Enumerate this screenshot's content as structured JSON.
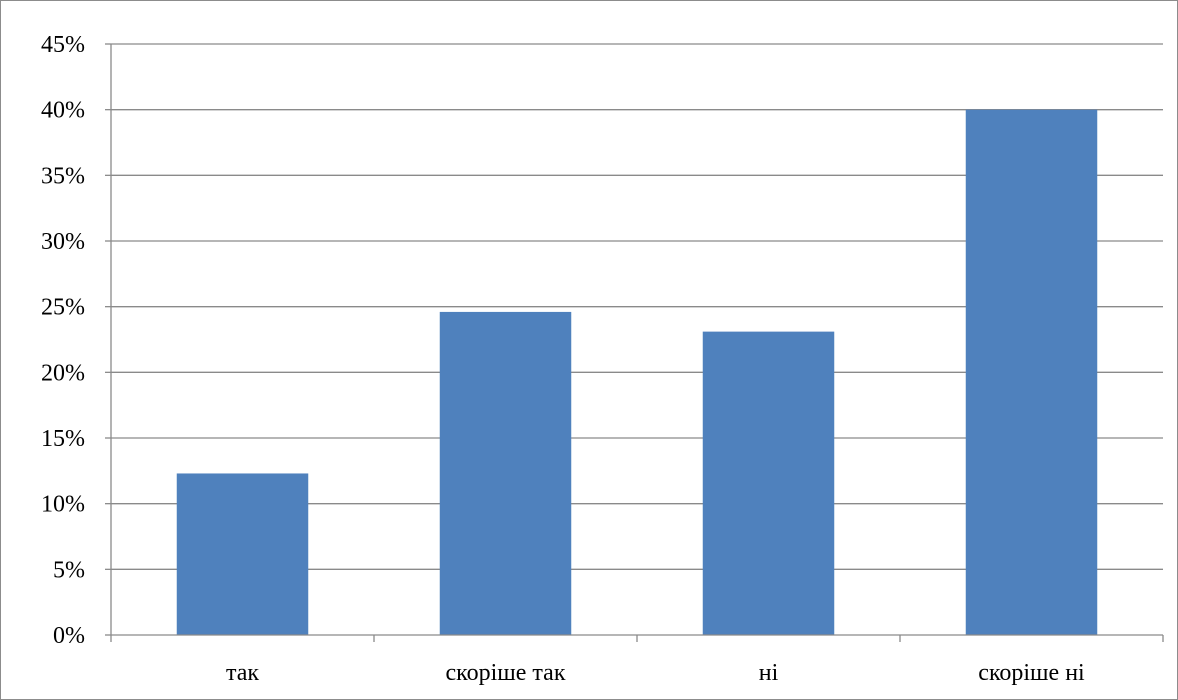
{
  "chart_data": {
    "type": "bar",
    "categories": [
      "так",
      "скоріше так",
      "ні",
      "скоріше ні"
    ],
    "values": [
      12.3,
      24.6,
      23.1,
      40.0
    ],
    "value_unit": "%",
    "ylim": [
      0,
      45
    ],
    "yticks": [
      0,
      5,
      10,
      15,
      20,
      25,
      30,
      35,
      40,
      45
    ],
    "ytick_labels": [
      "0%",
      "5%",
      "10%",
      "15%",
      "20%",
      "25%",
      "30%",
      "35%",
      "40%",
      "45%"
    ],
    "grid": true,
    "legend": "none",
    "bar_color": "#4f81bd",
    "title": "",
    "xlabel": "",
    "ylabel": ""
  }
}
